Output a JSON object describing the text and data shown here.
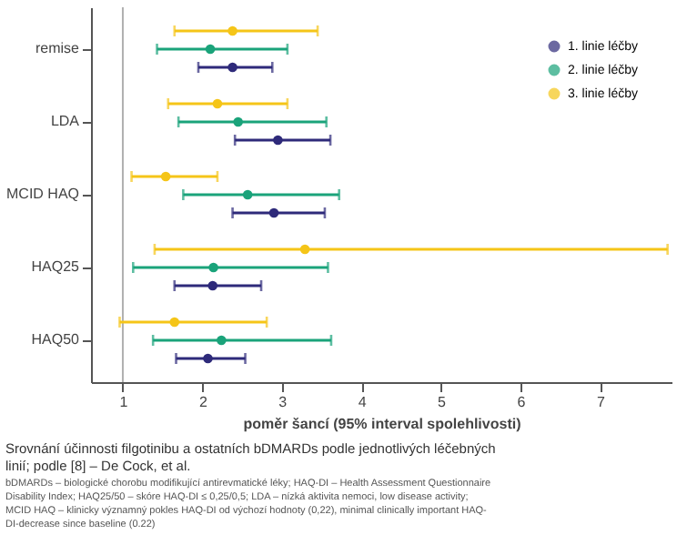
{
  "chart_data": {
    "type": "scatter",
    "title": "Srovnání účinnosti filgotinibu a ostatních bDMARDs podle jednotlivých léčebných linií; podle [8] – De Cock, et al.",
    "xlabel": "poměr šancí (95% interval spolehlivosti)",
    "categories": [
      "remise",
      "LDA",
      "MCID HAQ",
      "HAQ25",
      "HAQ50"
    ],
    "series": [
      {
        "name": "1. linie léčby",
        "color": "#2e2a7a",
        "values": [
          2.38,
          2.95,
          2.9,
          2.13,
          2.07
        ],
        "errors": [
          [
            1.95,
            2.88
          ],
          [
            2.41,
            3.61
          ],
          [
            2.38,
            3.54
          ],
          [
            1.65,
            2.74
          ],
          [
            1.67,
            2.54
          ]
        ]
      },
      {
        "name": "2. linie léčby",
        "color": "#1aa37a",
        "values": [
          2.1,
          2.45,
          2.57,
          2.14,
          2.24
        ],
        "errors": [
          [
            1.43,
            3.07
          ],
          [
            1.7,
            3.56
          ],
          [
            1.76,
            3.72
          ],
          [
            1.13,
            3.58
          ],
          [
            1.38,
            3.62
          ]
        ]
      },
      {
        "name": "3. linie léčby",
        "color": "#f5c518",
        "values": [
          2.38,
          2.19,
          1.54,
          3.29,
          1.65
        ],
        "errors": [
          [
            1.65,
            3.45
          ],
          [
            1.57,
            3.07
          ],
          [
            1.11,
            2.19
          ],
          [
            1.4,
            7.85
          ],
          [
            0.96,
            2.81
          ]
        ]
      }
    ],
    "orientation": "horizontal",
    "xlim": [
      0.6,
      7.9
    ],
    "xticks": [
      1,
      2,
      3,
      4,
      5,
      6,
      7
    ],
    "ref_lines": [
      {
        "axis": "x",
        "value": 1,
        "color": "#b0b0b0"
      }
    ],
    "grid": false,
    "legend": "top right",
    "marker": "circle",
    "annotations": [
      "bDMARDs – biologické chorobu modifikující antirevmatické léky; HAQ-DI – Health Assessment Questionnaire Disability Index; HAQ25/50 – skóre HAQ-DI ≤ 0,25/0,5; LDA – nízká aktivita nemoci, low disease activity; MCID HAQ – klinicky významný pokles HAQ-DI od výchozí hodnoty (0,22), minimal clinically important HAQ-DI-decrease since baseline (0.22)"
    ]
  }
}
